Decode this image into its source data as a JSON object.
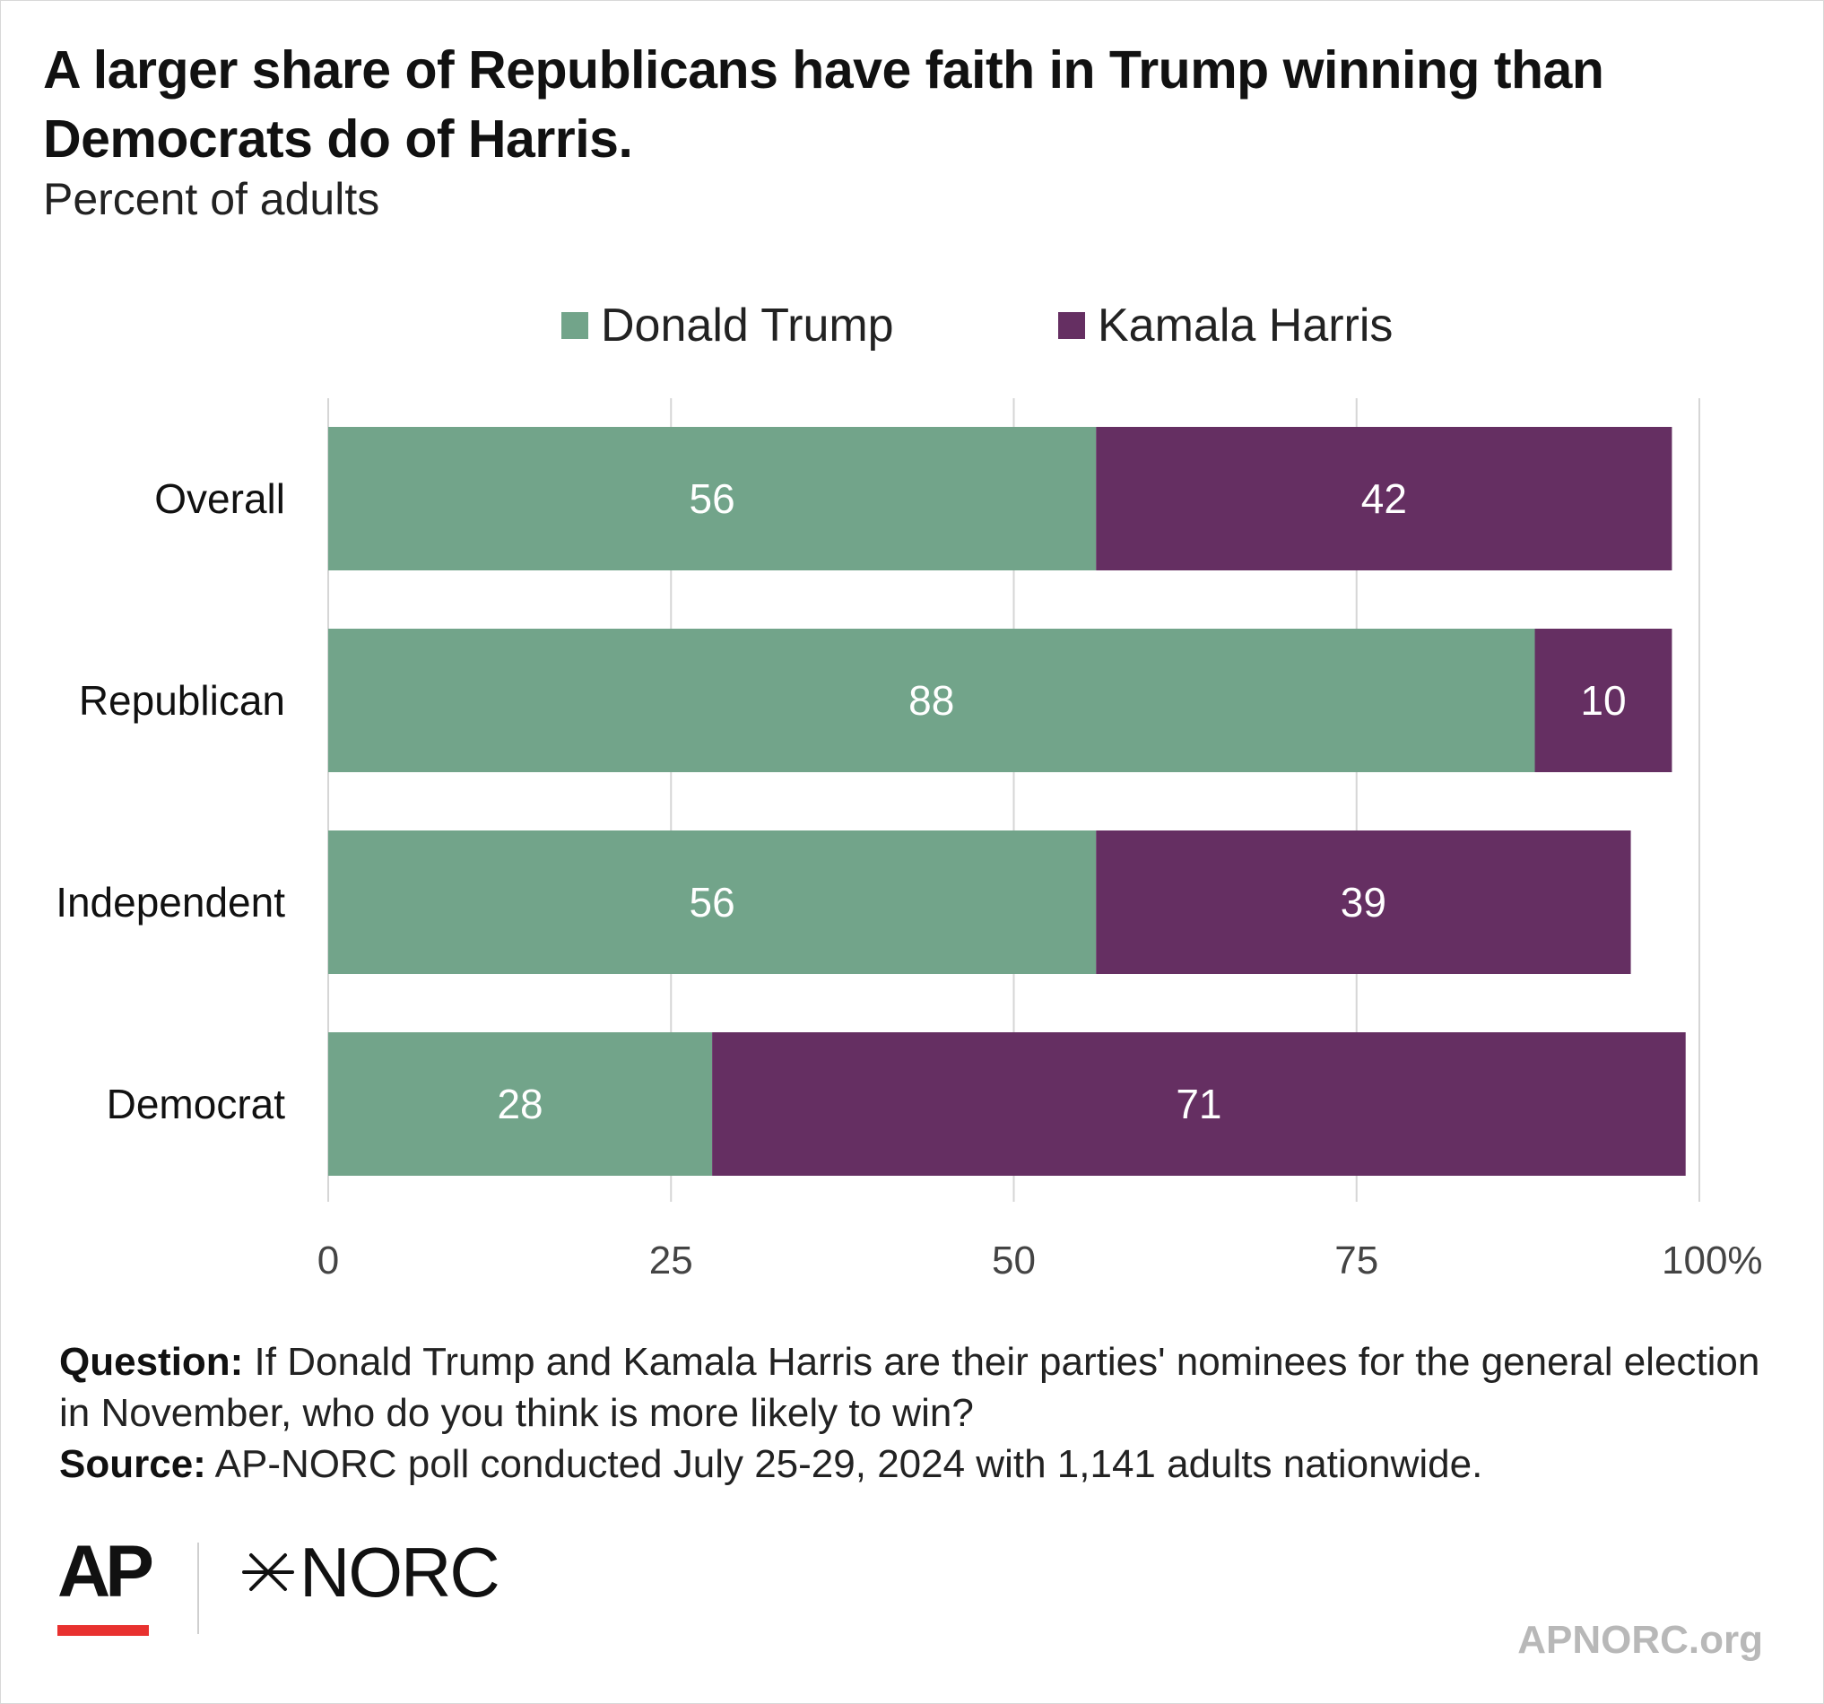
{
  "title": "A larger share of Republicans have faith in Trump winning than Democrats do of Harris.",
  "subtitle": "Percent of adults",
  "legend": [
    {
      "label": "Donald Trump",
      "color": "#72a48a"
    },
    {
      "label": "Kamala Harris",
      "color": "#652f62"
    }
  ],
  "chart_data": {
    "type": "bar",
    "orientation": "horizontal",
    "stacked": true,
    "categories": [
      "Overall",
      "Republican",
      "Independent",
      "Democrat"
    ],
    "series": [
      {
        "name": "Donald Trump",
        "color": "#72a48a",
        "values": [
          56,
          88,
          56,
          28
        ]
      },
      {
        "name": "Kamala Harris",
        "color": "#652f62",
        "values": [
          42,
          10,
          39,
          71
        ]
      }
    ],
    "xlim": [
      0,
      100
    ],
    "xticks": [
      0,
      25,
      50,
      75,
      100
    ],
    "xtick_labels": [
      "0",
      "25",
      "50",
      "75",
      "100%"
    ],
    "grid": true,
    "legend_position": "top"
  },
  "notes": {
    "question_label": "Question:",
    "question_text": " If Donald Trump and Kamala Harris are their parties' nominees for the general election in November, who do you think is more likely to win?",
    "source_label": "Source:",
    "source_text": " AP-NORC poll conducted July 25-29, 2024 with 1,141 adults nationwide."
  },
  "logos": {
    "ap": "AP",
    "norc": "NORC",
    "site": "APNORC.org"
  }
}
